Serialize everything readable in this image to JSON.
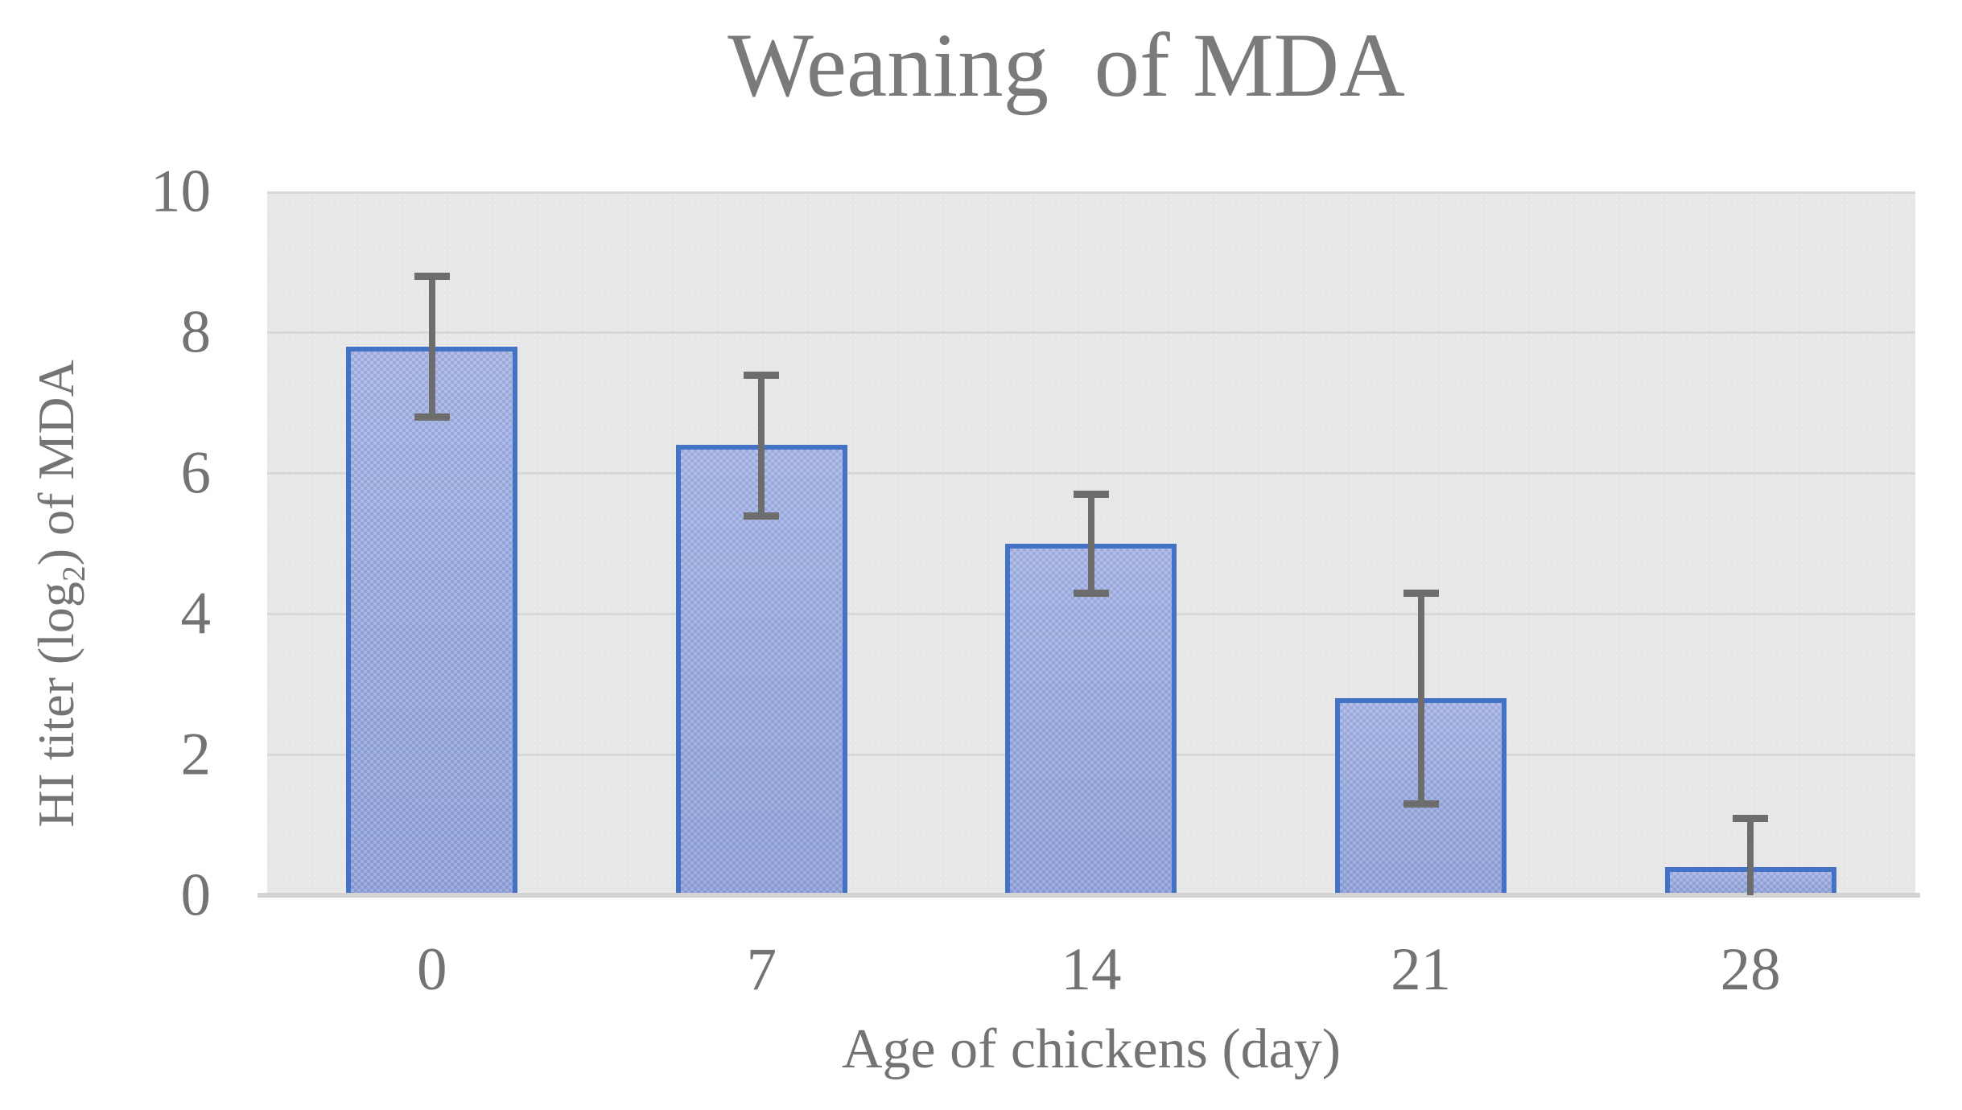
{
  "chart_data": {
    "type": "bar",
    "title": "Weaning  of MDA",
    "xlabel": "Age of chickens (day)",
    "ylabel": "HI titer (log2) of MDA",
    "ylabel_parts": {
      "pre": "HI titer (log",
      "sub": "2",
      "post": ") of MDA"
    },
    "categories": [
      "0",
      "7",
      "14",
      "21",
      "28"
    ],
    "values": [
      7.8,
      6.4,
      5.0,
      2.8,
      0.4
    ],
    "error_plus": [
      1.0,
      1.0,
      0.7,
      1.5,
      0.7
    ],
    "error_minus": [
      1.0,
      1.0,
      0.7,
      1.5,
      0.7
    ],
    "ylim": [
      0,
      10
    ],
    "yticks": [
      0,
      2,
      4,
      6,
      8,
      10
    ],
    "grid": true,
    "legend": "none",
    "colors": {
      "bar_fill": "#99A9DD",
      "bar_border": "#4472C4",
      "plot_bg": "#E7E7E7",
      "gridline": "#D8D8D8",
      "axis_line": "#D3D3D3",
      "error_bar": "#6D6D6D",
      "tick_text": "#737373",
      "title_text": "#7A7A7A",
      "page_bg": "#FFFFFF"
    }
  }
}
